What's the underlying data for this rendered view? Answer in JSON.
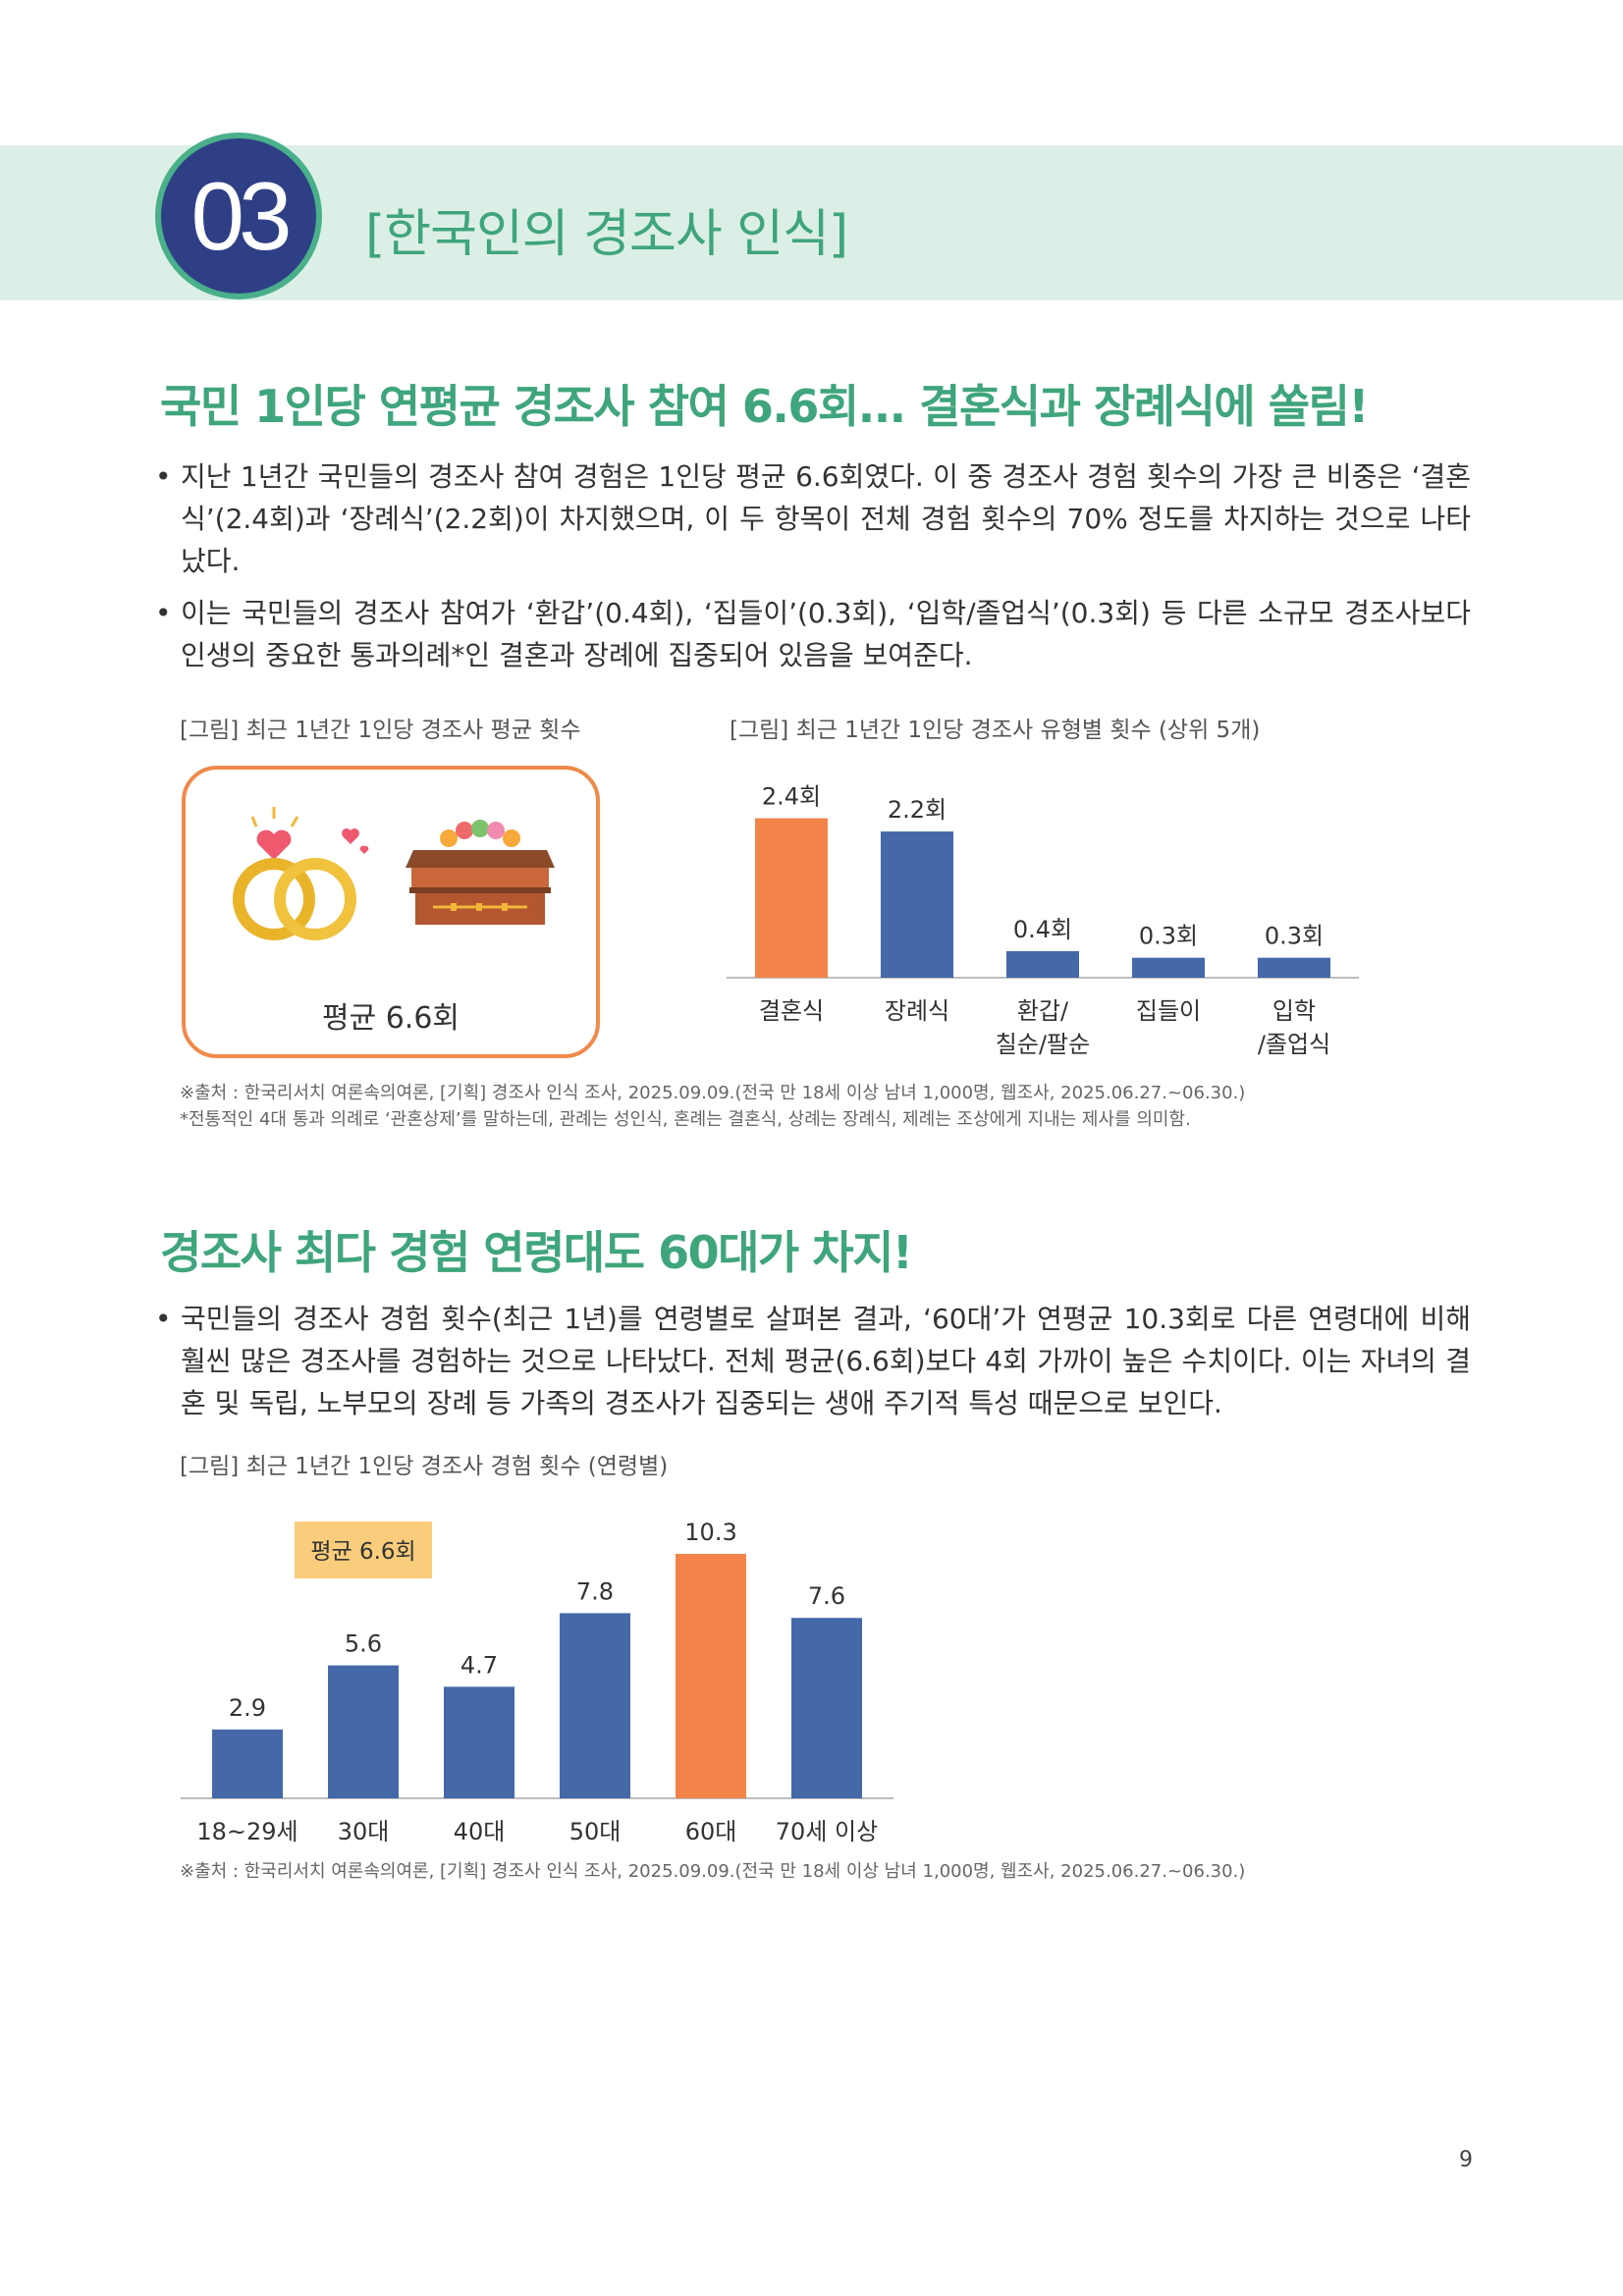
{
  "section": {
    "number": "03",
    "title": "[한국인의 경조사 인식]"
  },
  "part1": {
    "heading": "국민 1인당 연평균 경조사 참여 6.6회... 결혼식과 장례식에 쏠림!",
    "bullets": [
      "지난 1년간 국민들의 경조사 참여 경험은 1인당 평균 6.6회였다. 이 중 경조사 경험 횟수의 가장 큰 비중은 ‘결혼식’(2.4회)과 ‘장례식’(2.2회)이 차지했으며, 이 두 항목이 전체 경험 횟수의 70% 정도를 차지하는 것으로 나타났다.",
      "이는 국민들의 경조사 참여가 ‘환갑’(0.4회), ‘집들이’(0.3회), ‘입학/졸업식’(0.3회) 등 다른 소규모 경조사보다 인생의 중요한 통과의례*인 결혼과 장례에 집중되어 있음을 보여준다."
    ],
    "fig1_caption": "[그림] 최근 1년간 1인당 경조사 평균 횟수",
    "fig1_average": "평균 6.6회",
    "fig1_icons": [
      "wedding-rings-icon",
      "coffin-icon"
    ],
    "fig2_caption": "[그림] 최근 1년간 1인당 경조사 유형별 횟수 (상위 5개)",
    "source": "※출처 : 한국리서치 여론속의여론, [기획] 경조사 인식 조사, 2025.09.09.(전국 만 18세 이상 남녀 1,000명, 웹조사, 2025.06.27.~06.30.)",
    "footnote": "*전통적인 4대 통과 의례로 ‘관혼상제’를 말하는데, 관례는 성인식, 혼례는 결혼식, 상례는 장례식, 제례는 조상에게 지내는 제사를 의미함."
  },
  "part2": {
    "heading": "경조사 최다 경험 연령대도 60대가 차지!",
    "bullets": [
      "국민들의 경조사 경험 횟수(최근 1년)를 연령별로 살펴본 결과, ‘60대’가 연평균 10.3회로 다른 연령대에 비해 훨씬 많은 경조사를 경험하는 것으로 나타났다. 전체 평균(6.6회)보다 4회 가까이 높은 수치이다. 이는 자녀의 결혼 및 독립, 노부모의 장례 등 가족의 경조사가 집중되는 생애 주기적 특성 때문으로 보인다."
    ],
    "fig3_caption": "[그림] 최근 1년간 1인당 경조사 경험 횟수 (연령별)",
    "fig3_average_label": "평균 6.6회",
    "source": "※출처 : 한국리서치 여론속의여론, [기획] 경조사 인식 조사, 2025.09.09.(전국 만 18세 이상 남녀 1,000명, 웹조사, 2025.06.27.~06.30.)"
  },
  "page_number": "9",
  "colors": {
    "accent_green": "#3fa57c",
    "navy": "#2e3f86",
    "bar_blue": "#4468a8",
    "bar_orange": "#f2844a",
    "avg_box": "#f9cd7c"
  },
  "chart_data": [
    {
      "type": "bar",
      "categories": [
        "결혼식",
        "장례식",
        "환갑/\n칠순/팔순",
        "집들이",
        "입학\n/졸업식"
      ],
      "values": [
        2.4,
        2.2,
        0.4,
        0.3,
        0.3
      ],
      "value_labels": [
        "2.4회",
        "2.2회",
        "0.4회",
        "0.3회",
        "0.3회"
      ],
      "highlight_index": 0,
      "title": "[그림] 최근 1년간 1인당 경조사 유형별 횟수 (상위 5개)",
      "xlabel": "",
      "ylabel": "",
      "ylim": [
        0,
        2.6
      ],
      "grid": false
    },
    {
      "type": "bar",
      "categories": [
        "18~29세",
        "30대",
        "40대",
        "50대",
        "60대",
        "70세 이상"
      ],
      "values": [
        2.9,
        5.6,
        4.7,
        7.8,
        10.3,
        7.6
      ],
      "value_labels": [
        "2.9",
        "5.6",
        "4.7",
        "7.8",
        "10.3",
        "7.6"
      ],
      "highlight_index": 4,
      "title": "[그림] 최근 1년간 1인당 경조사 경험 횟수 (연령별)",
      "xlabel": "",
      "ylabel": "",
      "ylim": [
        0,
        11
      ],
      "grid": false
    }
  ]
}
